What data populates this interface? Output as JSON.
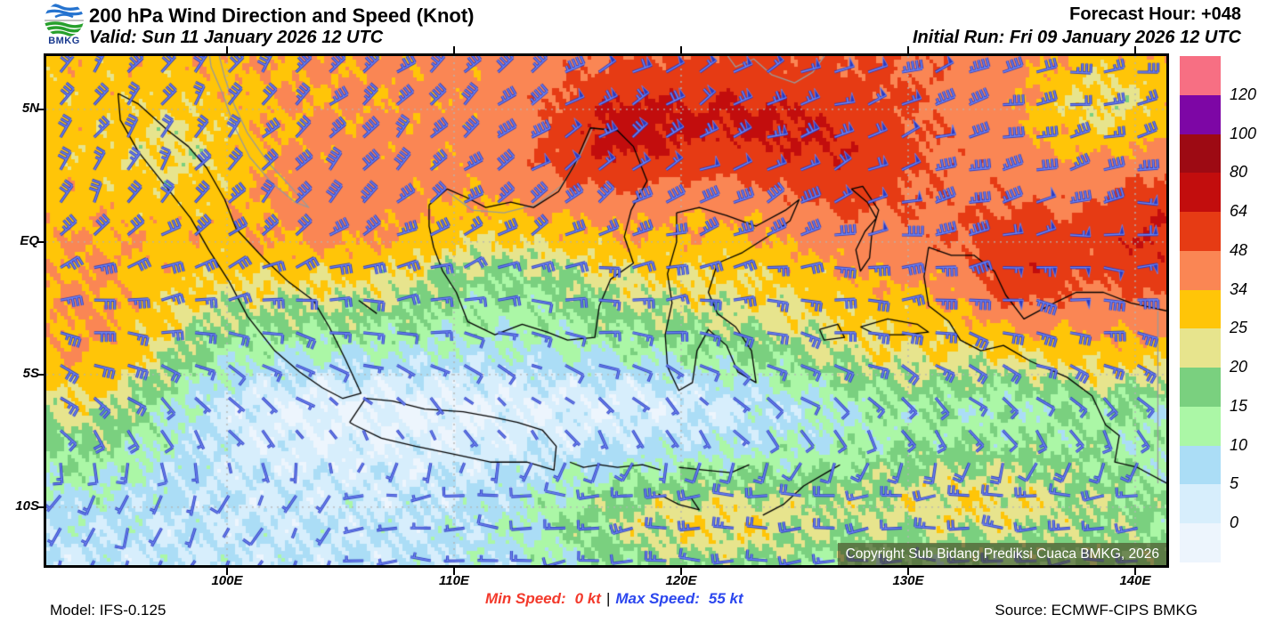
{
  "header": {
    "title": "200 hPa Wind Direction and Speed (Knot)",
    "valid": "Valid: Sun 11 January 2026 12 UTC",
    "forecast_hour": "Forecast Hour: +048",
    "initial_run": "Initial Run: Fri 09 January 2026 12 UTC",
    "logo_text": "BMKG"
  },
  "footer": {
    "model": "Model: IFS-0.125",
    "min_speed_label": "Min Speed:",
    "min_speed_value": "0 kt",
    "separator": "|",
    "max_speed_label": "Max Speed:",
    "max_speed_value": "55 kt",
    "source": "Source: ECMWF-CIPS BMKG",
    "min_color": "#f3392b",
    "max_color": "#2b46ee"
  },
  "legend": {
    "labels": [
      "120",
      "100",
      "80",
      "64",
      "48",
      "34",
      "25",
      "20",
      "15",
      "10",
      "5",
      "0"
    ],
    "colors_top_to_bottom": [
      "#f76f83",
      "#7d06a5",
      "#9d0a13",
      "#c20d0d",
      "#e63b14",
      "#fa8654",
      "#ffc508",
      "#e7e48d",
      "#7ad07f",
      "#abf7a6",
      "#abddf6",
      "#d7eefc",
      "#edf5fd"
    ],
    "thresholds_ascending": [
      0,
      5,
      10,
      15,
      20,
      25,
      34,
      48,
      64,
      80,
      100,
      120
    ]
  },
  "map": {
    "copyright": "Copyright Sub Bidang Prediksi Cuaca BMKG, 2026",
    "barb_color_dark": "#2c3bbf",
    "barb_color_light": "#6f86f2",
    "grid_color": "#b3b3b3",
    "coast_color": "#000000",
    "foreign_coast_color": "#9a9a9a",
    "x_ticks": [
      {
        "label": "100E",
        "lon": 100
      },
      {
        "label": "110E",
        "lon": 110
      },
      {
        "label": "120E",
        "lon": 120
      },
      {
        "label": "130E",
        "lon": 130
      },
      {
        "label": "140E",
        "lon": 140
      }
    ],
    "y_ticks": [
      {
        "label": "5N",
        "lat": 5
      },
      {
        "label": "EQ",
        "lat": 0
      },
      {
        "label": "5S",
        "lat": -5
      },
      {
        "label": "10S",
        "lat": -10
      }
    ],
    "field": {
      "blobs": [
        [
          117.3,
          4.2,
          26,
          2.2,
          1.6
        ],
        [
          122.5,
          4.6,
          20,
          2.6,
          1.6
        ],
        [
          126.8,
          3.2,
          16,
          2.2,
          1.8
        ],
        [
          113.8,
          2.2,
          8,
          2.5,
          1.5
        ],
        [
          135.2,
          -1.2,
          20,
          1.6,
          1.4
        ],
        [
          140.8,
          -0.2,
          16,
          1.6,
          2.2
        ],
        [
          93.5,
          -4.5,
          22,
          3.0,
          3.0
        ],
        [
          105.5,
          1.8,
          8,
          3.0,
          1.5
        ],
        [
          121.0,
          -10.6,
          18,
          5.0,
          1.6
        ],
        [
          133.0,
          -9.8,
          16,
          4.0,
          1.6
        ],
        [
          130.0,
          -5.2,
          7,
          3.0,
          1.6
        ],
        [
          138.5,
          -5.0,
          8,
          2.5,
          2.0
        ],
        [
          140.0,
          -11.8,
          8,
          3.0,
          2.0
        ],
        [
          139.0,
          5.3,
          -28,
          3.5,
          2.2
        ],
        [
          123.0,
          0.0,
          -10,
          4.0,
          1.8
        ],
        [
          112.5,
          -0.5,
          -14,
          3.5,
          2.2
        ],
        [
          104.5,
          -6.2,
          -4,
          4.0,
          2.0
        ],
        [
          112.0,
          -6.0,
          -4,
          5.0,
          2.2
        ],
        [
          119.5,
          -5.5,
          -3,
          3.0,
          2.0
        ],
        [
          98.0,
          3.5,
          -8,
          2.0,
          1.5
        ]
      ]
    },
    "geo": {
      "indonesia": [
        [
          [
            95.2,
            5.6
          ],
          [
            96.1,
            5.2
          ],
          [
            97.4,
            4.2
          ],
          [
            98.3,
            3.6
          ],
          [
            99.1,
            2.8
          ],
          [
            99.9,
            1.6
          ],
          [
            100.4,
            0.5
          ],
          [
            101.6,
            -0.6
          ],
          [
            102.7,
            -1.5
          ],
          [
            103.8,
            -2.2
          ],
          [
            104.5,
            -3.2
          ],
          [
            105.2,
            -4.4
          ],
          [
            105.9,
            -5.7
          ],
          [
            105.1,
            -5.9
          ],
          [
            104.2,
            -5.5
          ],
          [
            103.2,
            -4.9
          ],
          [
            102.1,
            -4.1
          ],
          [
            100.9,
            -2.8
          ],
          [
            100.1,
            -1.5
          ],
          [
            99.2,
            -0.3
          ],
          [
            98.4,
            0.9
          ],
          [
            97.3,
            2.1
          ],
          [
            96.1,
            3.4
          ],
          [
            95.3,
            4.6
          ],
          [
            95.2,
            5.6
          ]
        ],
        [
          [
            105.4,
            -6.8
          ],
          [
            106.1,
            -5.9
          ],
          [
            107.3,
            -6.0
          ],
          [
            108.7,
            -6.3
          ],
          [
            110.4,
            -6.4
          ],
          [
            111.7,
            -6.6
          ],
          [
            112.8,
            -6.8
          ],
          [
            113.9,
            -7.1
          ],
          [
            114.5,
            -7.7
          ],
          [
            114.4,
            -8.6
          ],
          [
            113.2,
            -8.3
          ],
          [
            111.6,
            -8.3
          ],
          [
            110.0,
            -8.0
          ],
          [
            108.3,
            -7.7
          ],
          [
            106.8,
            -7.4
          ],
          [
            105.6,
            -6.9
          ],
          [
            105.4,
            -6.8
          ]
        ],
        [
          [
            108.9,
            1.4
          ],
          [
            109.7,
            2.0
          ],
          [
            110.5,
            1.7
          ],
          [
            111.4,
            1.3
          ],
          [
            112.5,
            1.5
          ],
          [
            113.5,
            1.3
          ],
          [
            114.6,
            1.9
          ],
          [
            115.3,
            2.9
          ],
          [
            116.0,
            4.3
          ],
          [
            117.2,
            4.2
          ],
          [
            117.9,
            3.6
          ],
          [
            118.5,
            2.3
          ],
          [
            117.8,
            1.2
          ],
          [
            117.5,
            0.2
          ],
          [
            117.9,
            -0.8
          ],
          [
            116.9,
            -1.4
          ],
          [
            116.4,
            -2.4
          ],
          [
            116.2,
            -3.6
          ],
          [
            115.0,
            -3.7
          ],
          [
            114.1,
            -3.4
          ],
          [
            113.0,
            -3.1
          ],
          [
            111.8,
            -3.5
          ],
          [
            110.6,
            -3.0
          ],
          [
            110.1,
            -1.9
          ],
          [
            109.5,
            -1.1
          ],
          [
            109.1,
            -0.2
          ],
          [
            108.9,
            0.6
          ],
          [
            108.9,
            1.4
          ]
        ],
        [
          [
            119.8,
            1.1
          ],
          [
            120.8,
            1.3
          ],
          [
            122.0,
            1.0
          ],
          [
            123.3,
            0.6
          ],
          [
            124.6,
            1.2
          ],
          [
            125.2,
            1.6
          ],
          [
            124.8,
            0.8
          ],
          [
            123.8,
            0.2
          ],
          [
            122.7,
            -0.4
          ],
          [
            121.6,
            -0.8
          ],
          [
            121.2,
            -1.9
          ],
          [
            121.6,
            -2.7
          ],
          [
            122.4,
            -3.2
          ],
          [
            123.1,
            -4.1
          ],
          [
            123.3,
            -5.3
          ],
          [
            122.5,
            -4.9
          ],
          [
            122.0,
            -3.9
          ],
          [
            121.2,
            -3.3
          ],
          [
            120.7,
            -4.1
          ],
          [
            120.5,
            -5.3
          ],
          [
            119.9,
            -5.6
          ],
          [
            119.4,
            -4.7
          ],
          [
            119.3,
            -3.5
          ],
          [
            119.6,
            -2.3
          ],
          [
            119.4,
            -1.2
          ],
          [
            119.8,
            0.0
          ],
          [
            119.8,
            1.1
          ]
        ],
        [
          [
            130.9,
            -0.2
          ],
          [
            131.9,
            -0.5
          ],
          [
            132.9,
            -0.5
          ],
          [
            133.8,
            -1.1
          ],
          [
            134.3,
            -2.0
          ],
          [
            135.1,
            -2.9
          ],
          [
            136.2,
            -2.4
          ],
          [
            137.4,
            -1.9
          ],
          [
            138.6,
            -1.9
          ],
          [
            139.8,
            -2.3
          ],
          [
            141.4,
            -2.6
          ],
          [
            141.4,
            -9.1
          ],
          [
            140.1,
            -8.5
          ],
          [
            139.1,
            -8.3
          ],
          [
            139.3,
            -7.3
          ],
          [
            138.7,
            -6.9
          ],
          [
            138.1,
            -5.8
          ],
          [
            137.0,
            -5.1
          ],
          [
            135.4,
            -4.5
          ],
          [
            134.2,
            -3.9
          ],
          [
            133.2,
            -4.1
          ],
          [
            132.3,
            -3.7
          ],
          [
            131.8,
            -3.0
          ],
          [
            130.9,
            -2.4
          ],
          [
            130.7,
            -1.3
          ],
          [
            130.9,
            -0.2
          ]
        ],
        [
          [
            127.5,
            2.0
          ],
          [
            128.2,
            1.5
          ],
          [
            128.6,
            0.9
          ],
          [
            128.1,
            0.4
          ],
          [
            127.7,
            -0.3
          ],
          [
            127.9,
            -1.1
          ],
          [
            128.3,
            -0.6
          ],
          [
            128.4,
            0.3
          ],
          [
            128.7,
            1.2
          ],
          [
            128.0,
            2.1
          ],
          [
            127.5,
            2.0
          ]
        ],
        [
          [
            127.9,
            -3.2
          ],
          [
            129.1,
            -2.9
          ],
          [
            130.4,
            -3.1
          ],
          [
            130.9,
            -3.4
          ],
          [
            129.8,
            -3.5
          ],
          [
            128.6,
            -3.5
          ],
          [
            127.9,
            -3.2
          ]
        ],
        [
          [
            126.1,
            -3.3
          ],
          [
            126.9,
            -3.1
          ],
          [
            127.2,
            -3.6
          ],
          [
            126.3,
            -3.7
          ],
          [
            126.1,
            -3.3
          ]
        ],
        [
          [
            115.1,
            -8.3
          ],
          [
            115.7,
            -8.5
          ],
          [
            116.4,
            -8.4
          ],
          [
            117.2,
            -8.5
          ],
          [
            118.3,
            -8.4
          ],
          [
            119.1,
            -8.6
          ]
        ],
        [
          [
            119.9,
            -8.5
          ],
          [
            121.0,
            -8.6
          ],
          [
            122.2,
            -8.7
          ],
          [
            123.0,
            -8.4
          ]
        ],
        [
          [
            119.0,
            -9.5
          ],
          [
            119.9,
            -9.9
          ],
          [
            120.8,
            -10.1
          ],
          [
            120.4,
            -9.6
          ]
        ],
        [
          [
            123.6,
            -10.3
          ],
          [
            124.5,
            -9.9
          ],
          [
            125.4,
            -9.2
          ],
          [
            126.6,
            -8.6
          ],
          [
            127.0,
            -8.4
          ]
        ],
        [
          [
            105.8,
            -2.2
          ],
          [
            106.6,
            -2.7
          ]
        ]
      ],
      "foreign": [
        [
          [
            99.6,
            7.2
          ],
          [
            99.9,
            6.2
          ],
          [
            100.3,
            5.2
          ],
          [
            100.9,
            4.1
          ],
          [
            101.8,
            3.0
          ],
          [
            102.9,
            2.0
          ],
          [
            103.6,
            1.3
          ],
          [
            103.0,
            1.5
          ],
          [
            102.0,
            2.2
          ],
          [
            101.0,
            3.2
          ],
          [
            100.3,
            4.4
          ],
          [
            99.8,
            5.6
          ],
          [
            99.3,
            6.6
          ],
          [
            99.2,
            7.2
          ]
        ],
        [
          [
            121.9,
            7.2
          ],
          [
            122.4,
            6.6
          ],
          [
            123.2,
            6.9
          ],
          [
            124.0,
            6.3
          ],
          [
            125.0,
            6.0
          ],
          [
            125.8,
            6.4
          ],
          [
            126.3,
            7.0
          ],
          [
            126.4,
            7.2
          ]
        ],
        [
          [
            109.7,
            1.9
          ],
          [
            110.8,
            1.2
          ],
          [
            112.2,
            1.1
          ],
          [
            113.6,
            1.4
          ],
          [
            114.7,
            2.1
          ],
          [
            115.4,
            3.0
          ],
          [
            116.1,
            4.3
          ]
        ],
        [
          [
            141.0,
            -2.6
          ],
          [
            141.0,
            -9.1
          ]
        ]
      ]
    }
  },
  "chart_data": {
    "type": "heatmap",
    "title": "200 hPa Wind Direction and Speed (Knot)",
    "units": "knot",
    "level": "200 hPa",
    "legend_levels": [
      0,
      5,
      10,
      15,
      20,
      25,
      34,
      48,
      64,
      80,
      100,
      120
    ],
    "lon_ticks": [
      "100E",
      "110E",
      "120E",
      "130E",
      "140E"
    ],
    "lat_ticks": [
      "5N",
      "EQ",
      "5S",
      "10S"
    ],
    "min_speed_kt": 0,
    "max_speed_kt": 55,
    "legend_position": "right"
  }
}
